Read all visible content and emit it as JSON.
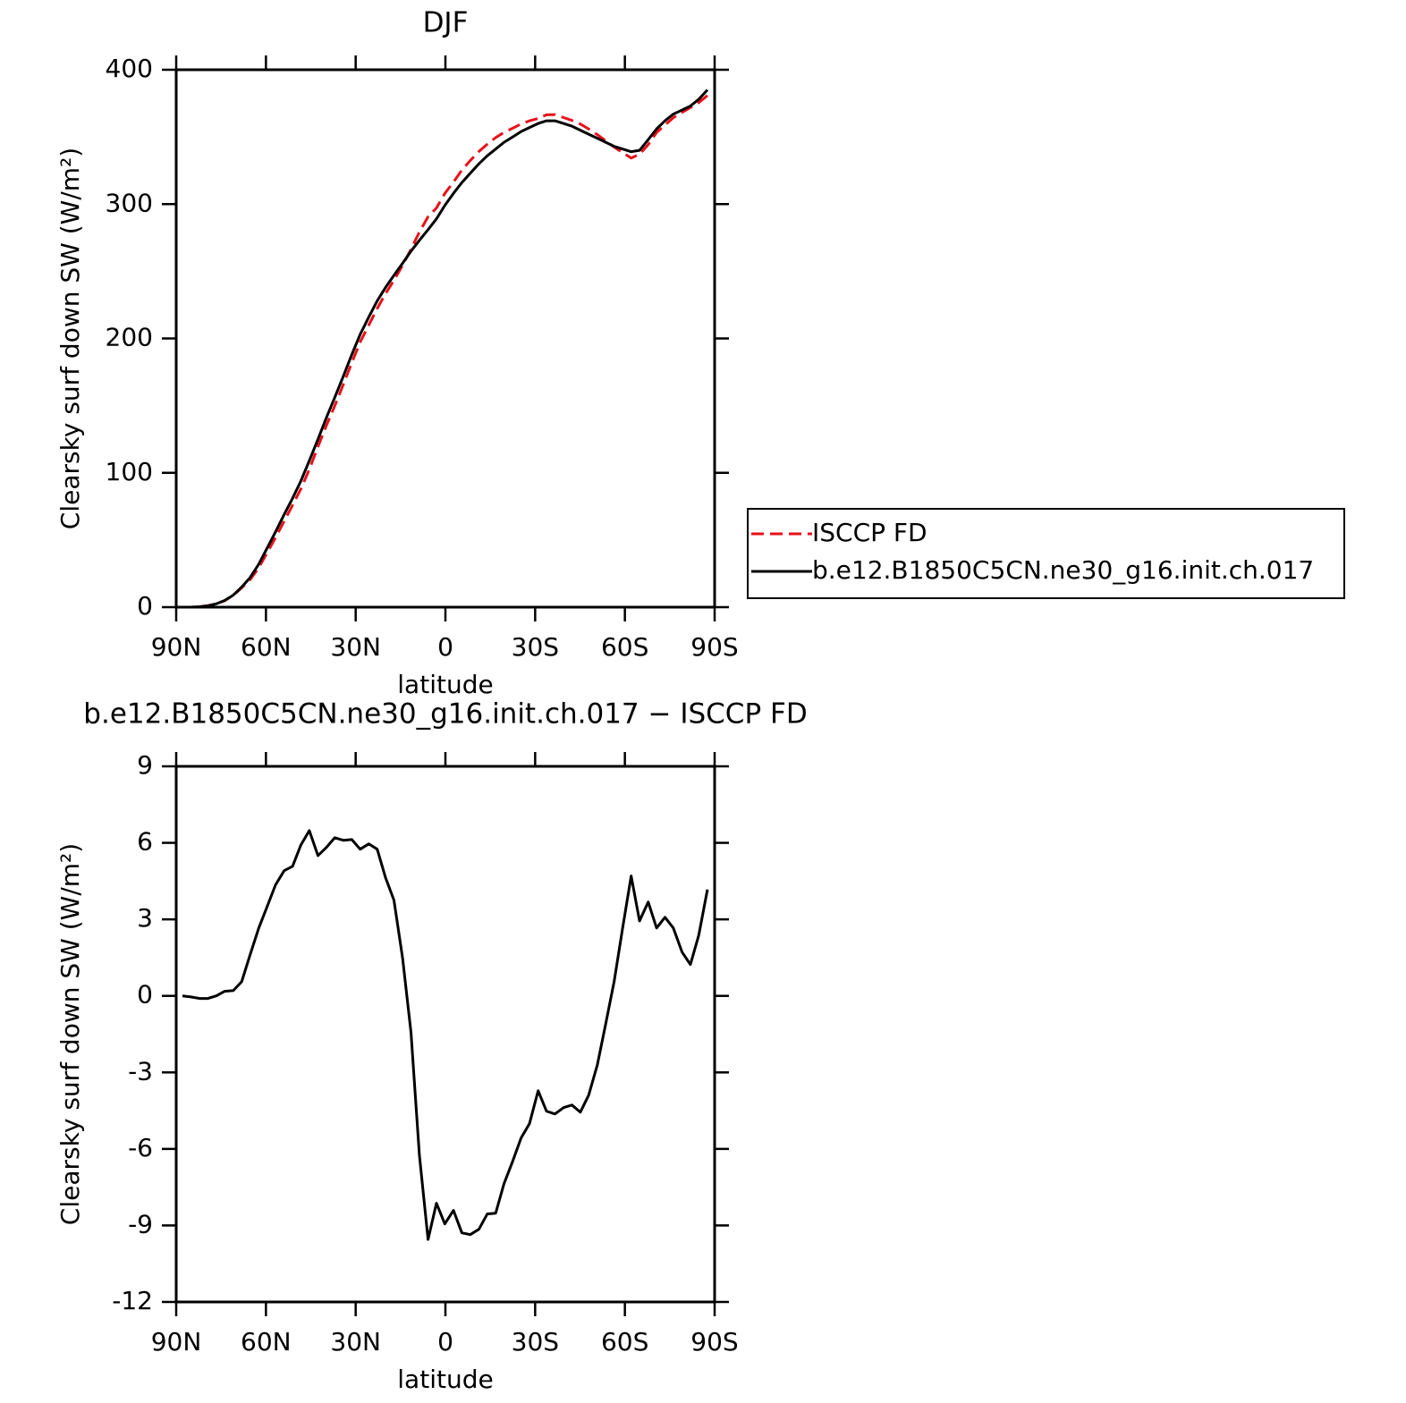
{
  "chart_data": [
    {
      "type": "line",
      "title": "DJF",
      "xlabel": "latitude",
      "ylabel": "Clearsky surf down SW (W/m²)",
      "x": [
        87.9,
        85.1,
        82.2,
        79.4,
        76.6,
        73.8,
        70.9,
        68.1,
        65.3,
        62.4,
        59.6,
        56.8,
        53.9,
        51.1,
        48.3,
        45.5,
        42.6,
        39.8,
        37.0,
        34.1,
        31.3,
        28.5,
        25.6,
        22.8,
        20.0,
        17.2,
        14.3,
        11.5,
        8.7,
        5.8,
        3.0,
        0.2,
        -2.7,
        -5.5,
        -8.3,
        -11.2,
        -14.0,
        -16.8,
        -19.6,
        -22.5,
        -25.3,
        -28.1,
        -31.0,
        -33.8,
        -36.6,
        -39.5,
        -42.3,
        -45.1,
        -47.9,
        -50.8,
        -53.6,
        -56.4,
        -59.3,
        -62.1,
        -64.9,
        -67.8,
        -70.6,
        -73.4,
        -76.2,
        -79.1,
        -81.9,
        -84.7,
        -87.6
      ],
      "series": [
        {
          "name": "ISCCP FD",
          "color": "#e8101a",
          "dashed": true,
          "values": [
            0,
            0,
            0.4,
            1.1,
            2.5,
            4.8,
            8.8,
            14.4,
            20.4,
            29.3,
            40.5,
            51.7,
            64.1,
            75.9,
            88.1,
            102.5,
            119.5,
            135.2,
            149.8,
            165.9,
            181.9,
            197.3,
            210.0,
            222.3,
            233.4,
            243.3,
            254.5,
            266.4,
            279.2,
            290.6,
            297.1,
            307.9,
            316.4,
            325.3,
            332.4,
            339.2,
            344.6,
            349.5,
            353.4,
            356.5,
            359.6,
            362.0,
            363.7,
            366.5,
            366.6,
            364.4,
            362.3,
            359.6,
            355.9,
            351.7,
            347.1,
            342.4,
            338.3,
            334.3,
            337.1,
            344.3,
            353.3,
            358.9,
            364.3,
            368.3,
            371.8,
            375.6,
            380.8
          ]
        },
        {
          "name": "b.e12.B1850C5CN.ne30_g16.init.ch.017",
          "color": "#000000",
          "dashed": false,
          "values": [
            0,
            0,
            0.3,
            1,
            2.5,
            5,
            9,
            15,
            22,
            32,
            44,
            56,
            69,
            81,
            94,
            109,
            125,
            141,
            156,
            172,
            188,
            203,
            216,
            228,
            238,
            247,
            256,
            265,
            273,
            281,
            289,
            299,
            308,
            316,
            323,
            330,
            336,
            341,
            346,
            350,
            354,
            357,
            360,
            362,
            362,
            360,
            358,
            355,
            352,
            349,
            346,
            343,
            341,
            339,
            340,
            348,
            356,
            362,
            367,
            370,
            373,
            378,
            385
          ]
        }
      ],
      "xlim": [
        90,
        -90
      ],
      "ylim": [
        0,
        400
      ],
      "xticks": [
        {
          "value": 90,
          "label": "90N"
        },
        {
          "value": 60,
          "label": "60N"
        },
        {
          "value": 30,
          "label": "30N"
        },
        0,
        {
          "value": -30,
          "label": "30S"
        },
        {
          "value": -60,
          "label": "60S"
        },
        {
          "value": -90,
          "label": "90S"
        }
      ],
      "yticks": [
        0,
        100,
        200,
        300,
        400
      ],
      "legend": "right"
    },
    {
      "type": "line",
      "title": "b.e12.B1850C5CN.ne30_g16.init.ch.017 − ISCCP FD",
      "xlabel": "latitude",
      "ylabel": "Clearsky surf down SW (W/m²)",
      "x": [
        87.9,
        85.1,
        82.2,
        79.4,
        76.6,
        73.8,
        70.9,
        68.1,
        65.3,
        62.4,
        59.6,
        56.8,
        53.9,
        51.1,
        48.3,
        45.5,
        42.6,
        39.8,
        37.0,
        34.1,
        31.3,
        28.5,
        25.6,
        22.8,
        20.0,
        17.2,
        14.3,
        11.5,
        8.7,
        5.8,
        3.0,
        0.2,
        -2.7,
        -5.5,
        -8.3,
        -11.2,
        -14.0,
        -16.8,
        -19.6,
        -22.5,
        -25.3,
        -28.1,
        -31.0,
        -33.8,
        -36.6,
        -39.5,
        -42.3,
        -45.1,
        -47.9,
        -50.8,
        -53.6,
        -56.4,
        -59.3,
        -62.1,
        -64.9,
        -67.8,
        -70.6,
        -73.4,
        -76.2,
        -79.1,
        -81.9,
        -84.7,
        -87.6
      ],
      "series": [
        {
          "color": "#000000",
          "dashed": false,
          "values": [
            0,
            -0.04,
            -0.1,
            -0.1,
            0,
            0.18,
            0.21,
            0.56,
            1.61,
            2.66,
            3.5,
            4.35,
            4.91,
            5.08,
            5.92,
            6.48,
            5.5,
            5.82,
            6.2,
            6.1,
            6.13,
            5.75,
            5.96,
            5.75,
            4.63,
            3.75,
            1.47,
            -1.44,
            -6.24,
            -9.55,
            -8.13,
            -8.94,
            -8.41,
            -9.29,
            -9.36,
            -9.15,
            -8.55,
            -8.52,
            -7.36,
            -6.48,
            -5.57,
            -5.01,
            -3.72,
            -4.52,
            -4.63,
            -4.38,
            -4.28,
            -4.56,
            -3.89,
            -2.7,
            -1.09,
            0.56,
            2.7,
            4.7,
            2.94,
            3.68,
            2.66,
            3.08,
            2.66,
            1.72,
            1.23,
            2.38,
            4.17
          ]
        }
      ],
      "xlim": [
        90,
        -90
      ],
      "ylim": [
        -12,
        9
      ],
      "xticks": [
        {
          "value": 90,
          "label": "90N"
        },
        {
          "value": 60,
          "label": "60N"
        },
        {
          "value": 30,
          "label": "30N"
        },
        0,
        {
          "value": -30,
          "label": "30S"
        },
        {
          "value": -60,
          "label": "60S"
        },
        {
          "value": -90,
          "label": "90S"
        }
      ],
      "yticks": [
        -12,
        -9,
        -6,
        -3,
        0,
        3,
        6,
        9
      ]
    }
  ]
}
